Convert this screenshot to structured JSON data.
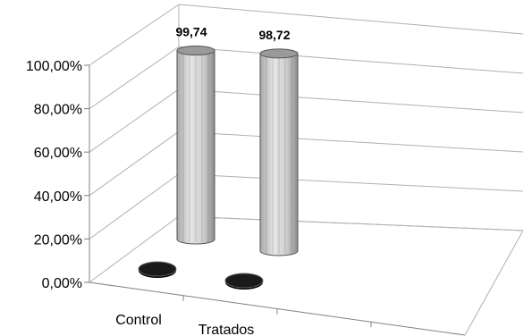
{
  "chart_data": {
    "type": "bar",
    "style": "3d-cylinder",
    "categories": [
      "Control",
      "Tratados"
    ],
    "series": [
      {
        "values": [
          0,
          0
        ],
        "color": "#000000"
      },
      {
        "values": [
          99.74,
          98.72
        ],
        "color": "#c8c8c8"
      }
    ],
    "data_labels": [
      "99,74",
      "98,72"
    ],
    "y_ticks": [
      "0,00%",
      "20,00%",
      "40,00%",
      "60,00%",
      "80,00%",
      "100,00%"
    ],
    "ylim": [
      0,
      100
    ],
    "grid": true,
    "legend": "none"
  }
}
